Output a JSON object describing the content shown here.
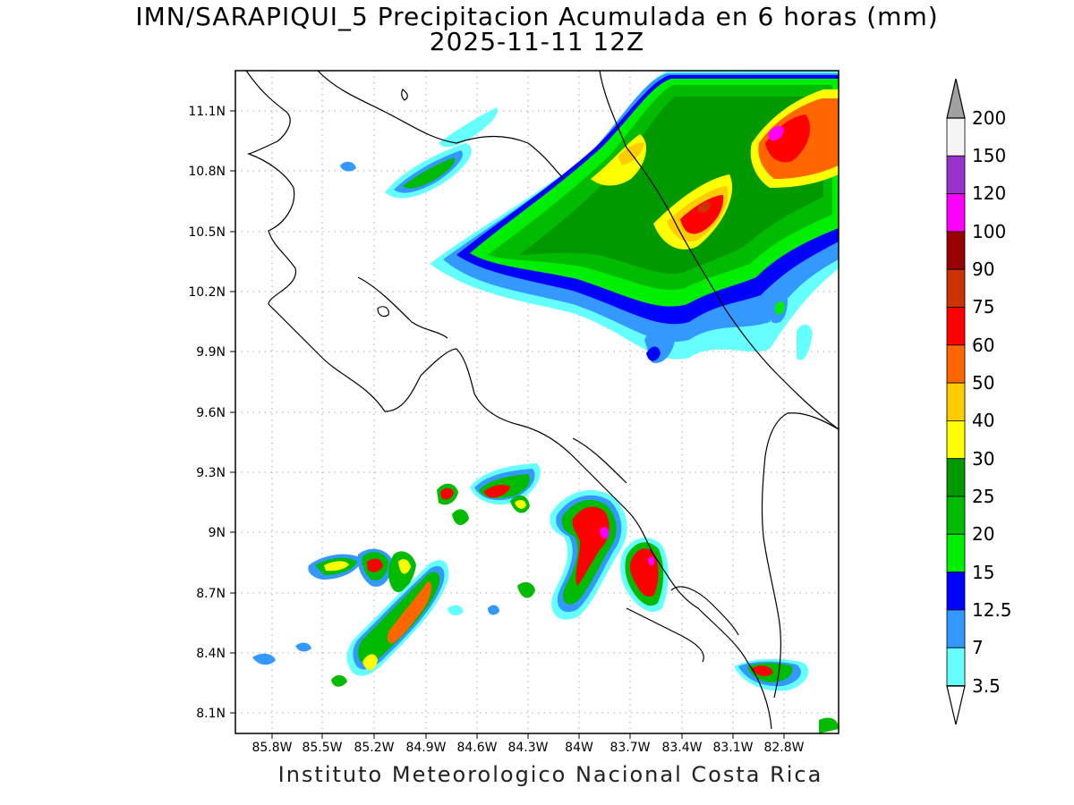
{
  "title_line1": "IMN/SARAPIQUI_5 Precipitacion Acumulada en 6 horas (mm)",
  "title_line2": "2025-11-11 12Z",
  "credit": "Instituto Meteorologico Nacional Costa Rica",
  "map": {
    "lat_ticks": [
      "11.1N",
      "10.8N",
      "10.5N",
      "10.2N",
      "9.9N",
      "9.6N",
      "9.3N",
      "9N",
      "8.7N",
      "8.4N",
      "8.1N"
    ],
    "lon_ticks": [
      "85.8W",
      "85.5W",
      "85.2W",
      "84.9W",
      "84.6W",
      "84.3W",
      "84W",
      "83.7W",
      "83.4W",
      "83.1W",
      "82.8W"
    ]
  },
  "colorbar": {
    "labels": [
      "200",
      "150",
      "120",
      "100",
      "90",
      "75",
      "60",
      "50",
      "40",
      "30",
      "25",
      "20",
      "15",
      "12.5",
      "7",
      "3.5"
    ],
    "colors": [
      "#f5f5f5",
      "#9933cc",
      "#ff00ff",
      "#990000",
      "#cc3300",
      "#ff0000",
      "#ff6600",
      "#ffcc00",
      "#ffff00",
      "#009900",
      "#00bb00",
      "#00ee00",
      "#0000ff",
      "#3399ff",
      "#66ffff"
    ]
  }
}
